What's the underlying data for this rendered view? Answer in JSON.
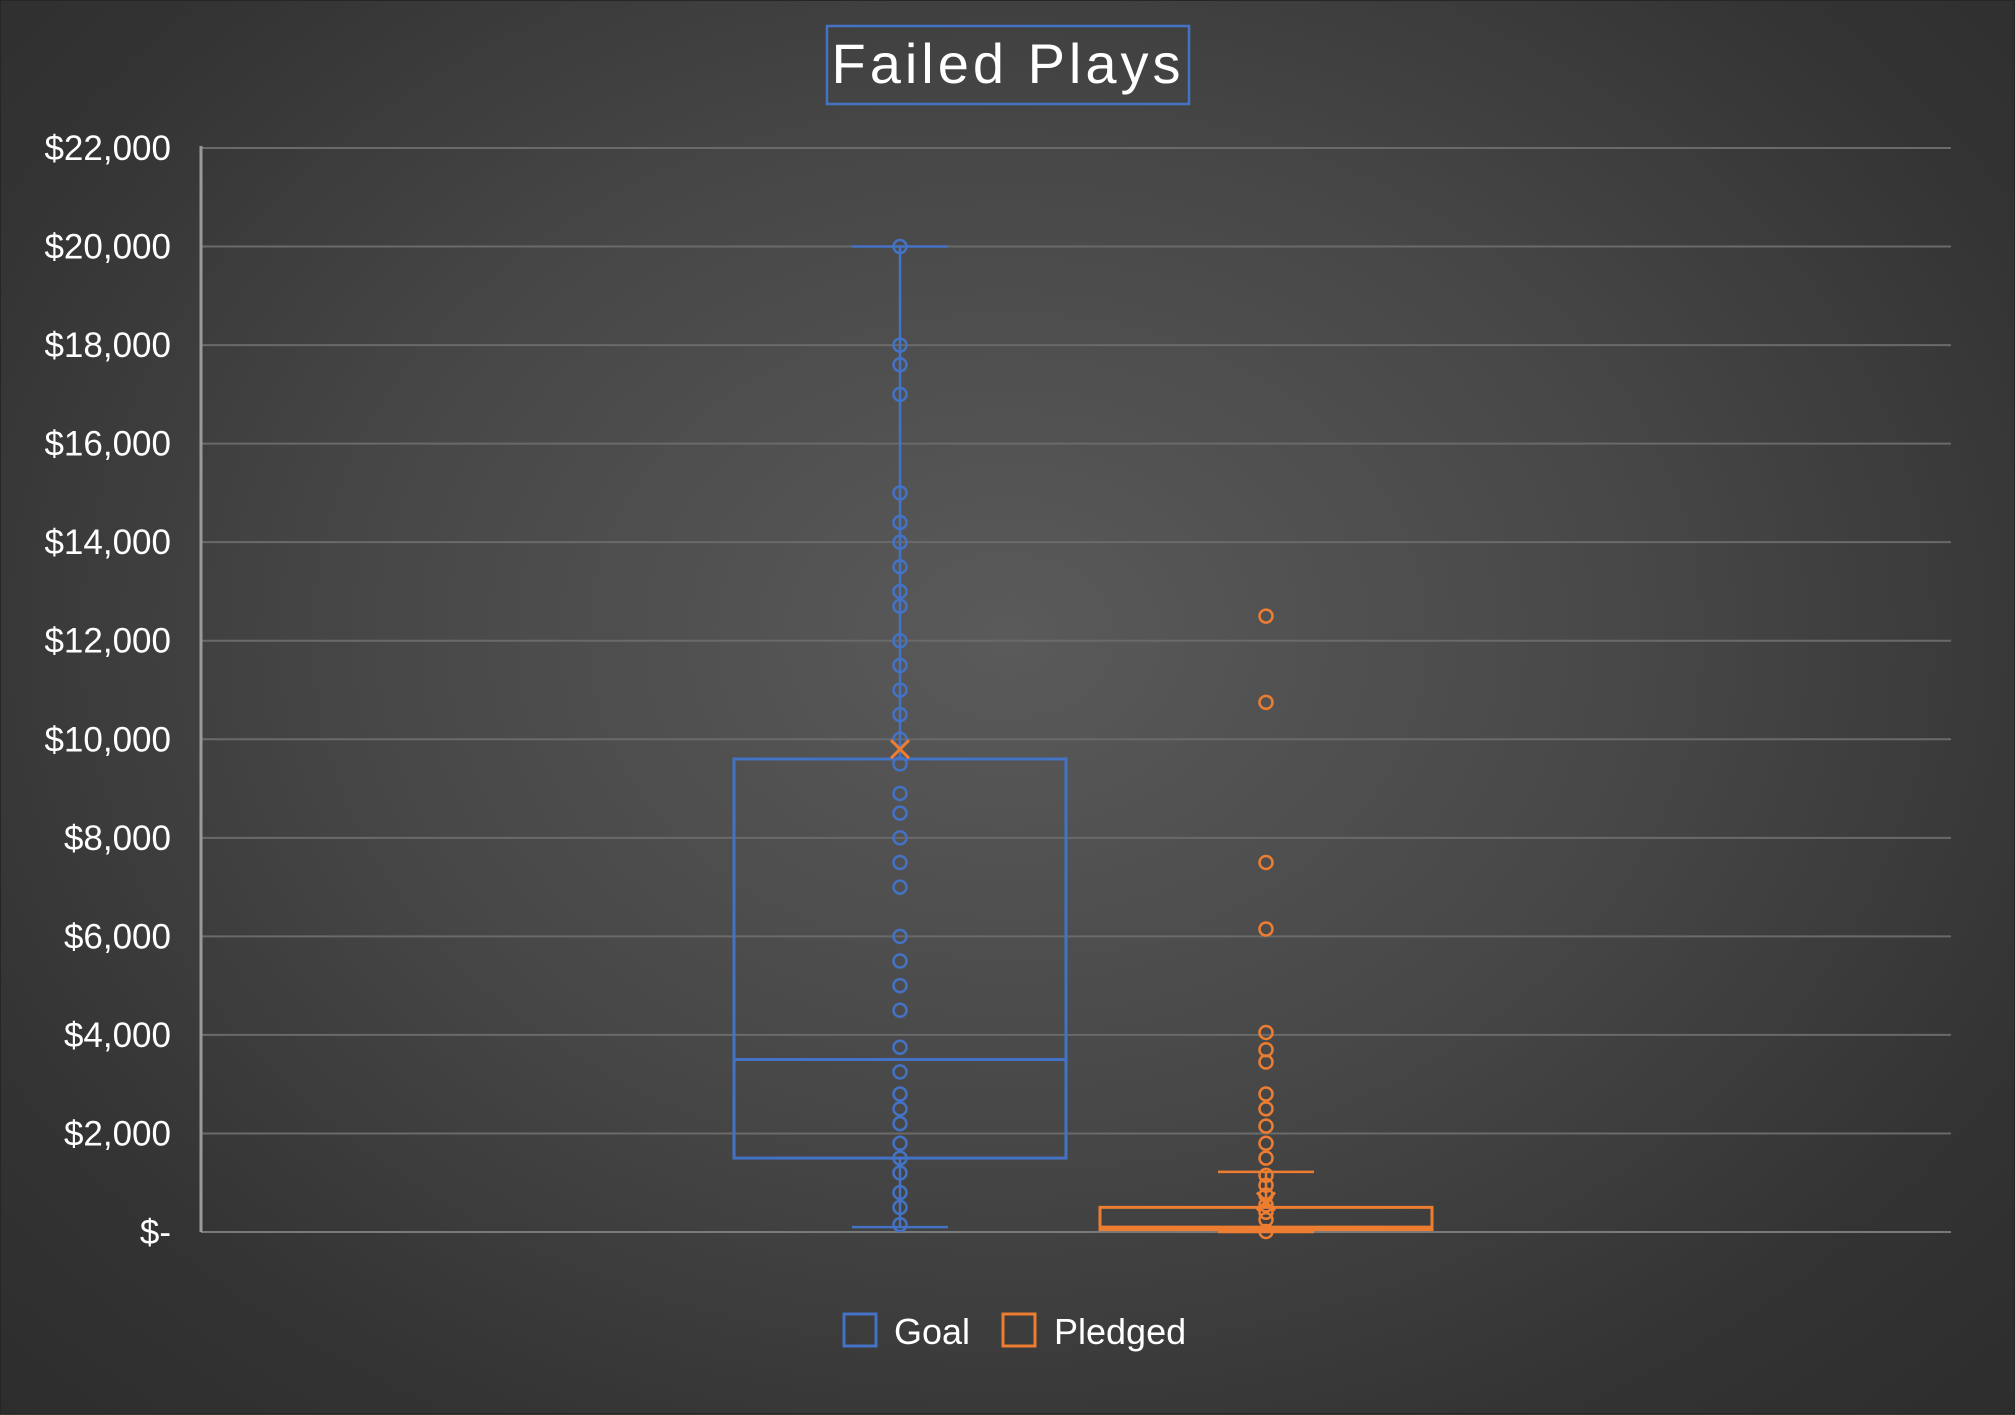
{
  "chart_data": {
    "type": "boxplot",
    "title": "Failed Plays",
    "xlabel": "",
    "ylabel": "",
    "ylim": [
      0,
      22000
    ],
    "yticks": [
      0,
      2000,
      4000,
      6000,
      8000,
      10000,
      12000,
      14000,
      16000,
      18000,
      20000,
      22000
    ],
    "ytick_labels": [
      "$-",
      "$2,000",
      "$4,000",
      "$6,000",
      "$8,000",
      "$10,000",
      "$12,000",
      "$14,000",
      "$16,000",
      "$18,000",
      "$20,000",
      "$22,000"
    ],
    "grid": true,
    "legend_position": "bottom",
    "series": [
      {
        "name": "Goal",
        "color": "#4472c4",
        "min": 100,
        "q1": 1500,
        "median": 3500,
        "q3": 9600,
        "max": 20000,
        "mean": 9800,
        "points": [
          20000,
          18000,
          17600,
          17000,
          15000,
          14400,
          14000,
          13500,
          13000,
          12700,
          12000,
          11500,
          11000,
          10500,
          10000,
          9500,
          8900,
          8500,
          8000,
          7500,
          7000,
          6000,
          5500,
          5000,
          4500,
          3750,
          3250,
          2800,
          2500,
          2200,
          1800,
          1500,
          1200,
          800,
          500,
          150
        ]
      },
      {
        "name": "Pledged",
        "color": "#ed7d31",
        "min": 0,
        "q1": 50,
        "median": 100,
        "q3": 500,
        "max": 1220,
        "mean": 620,
        "points": [
          12500,
          10750,
          7500,
          6150,
          4050,
          3700,
          3450,
          2800,
          2500,
          2150,
          1800,
          1500,
          1150,
          950,
          750,
          550,
          400,
          250,
          10
        ]
      }
    ]
  }
}
